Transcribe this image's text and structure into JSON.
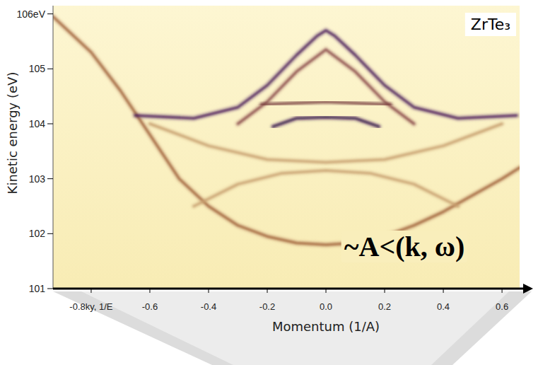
{
  "chart_data": {
    "type": "line",
    "title": "ZrTe₃",
    "annotation": "~A<(k, ω)",
    "x_label": "Momentum (1/A)",
    "y_label": "Kinetic energy (eV)",
    "xlim": [
      -0.93,
      0.66
    ],
    "ylim": [
      101,
      106.15
    ],
    "xticks": [
      {
        "value": -0.8,
        "label": "-0.8ky, 1/E"
      },
      -0.6,
      -0.4,
      -0.2,
      {
        "value": 0,
        "label": "0.0"
      },
      0.2,
      0.4,
      0.6
    ],
    "yticks": [
      101,
      102,
      103,
      104,
      105,
      {
        "value": 106,
        "label": "106eV"
      }
    ],
    "grid": false,
    "series": [
      {
        "color": "#a0603a",
        "x": [
          -0.93,
          -0.8,
          -0.7,
          -0.6,
          -0.5,
          -0.4,
          -0.3,
          -0.2,
          -0.1,
          0,
          0.1,
          0.2,
          0.3,
          0.4,
          0.5,
          0.6,
          0.66
        ],
        "values": [
          105.95,
          105.3,
          104.6,
          103.8,
          103.0,
          102.5,
          102.15,
          101.95,
          101.83,
          101.8,
          101.83,
          101.95,
          102.15,
          102.4,
          102.7,
          103.0,
          103.2
        ]
      },
      {
        "color": "#4a1a5a",
        "x": [
          -0.65,
          -0.45,
          -0.3,
          -0.2,
          -0.1,
          -0.03,
          0,
          0.03,
          0.1,
          0.2,
          0.3,
          0.45,
          0.65
        ],
        "values": [
          104.15,
          104.1,
          104.3,
          104.7,
          105.25,
          105.6,
          105.7,
          105.6,
          105.25,
          104.7,
          104.3,
          104.1,
          104.15
        ]
      },
      {
        "color": "#8a4a4a",
        "x": [
          -0.3,
          -0.2,
          -0.1,
          0,
          0.1,
          0.2,
          0.3
        ],
        "values": [
          104.0,
          104.4,
          104.95,
          105.35,
          104.95,
          104.4,
          104.0
        ]
      },
      {
        "color": "#7a4040",
        "x": [
          -0.22,
          0,
          0.22
        ],
        "values": [
          104.35,
          104.4,
          104.35
        ]
      },
      {
        "color": "#2e0a48",
        "x": [
          -0.18,
          -0.1,
          0,
          0.1,
          0.18
        ],
        "values": [
          103.95,
          104.1,
          104.12,
          104.1,
          103.95
        ]
      },
      {
        "color": "#c8a070",
        "x": [
          -0.45,
          -0.3,
          -0.15,
          0,
          0.15,
          0.3,
          0.45
        ],
        "values": [
          102.5,
          102.9,
          103.1,
          103.15,
          103.1,
          102.9,
          102.5
        ]
      },
      {
        "color": "#c8a070",
        "x": [
          -0.6,
          -0.4,
          -0.2,
          0,
          0.2,
          0.4,
          0.6
        ],
        "values": [
          104.0,
          103.6,
          103.35,
          103.3,
          103.35,
          103.6,
          104.0
        ]
      }
    ]
  }
}
